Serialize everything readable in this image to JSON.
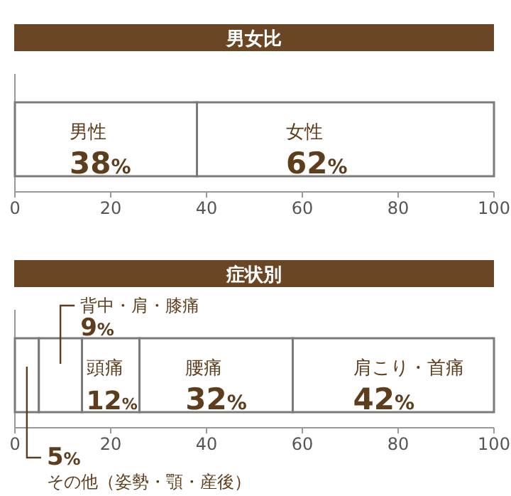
{
  "chart_data": [
    {
      "type": "bar",
      "orientation": "horizontal",
      "stacked": true,
      "title": "男女比",
      "categories": [
        null
      ],
      "series": [
        {
          "name": "男性",
          "color": "#ffffff",
          "values": [
            38
          ],
          "value_labels": [
            "38%"
          ]
        },
        {
          "name": "女性",
          "color": "#ffffff",
          "values": [
            62
          ],
          "value_labels": [
            "62%"
          ]
        }
      ],
      "xlim": [
        0,
        100
      ],
      "xticks": [
        0,
        20,
        40,
        60,
        80,
        100
      ]
    },
    {
      "type": "bar",
      "orientation": "horizontal",
      "stacked": true,
      "title": "症状別",
      "categories": [
        null
      ],
      "series": [
        {
          "name": "その他（姿勢・顎・産後）",
          "color": "#ffffff",
          "values": [
            5
          ],
          "value_labels": [
            "5%"
          ]
        },
        {
          "name": "背中・肩・膝痛",
          "color": "#ffffff",
          "values": [
            9
          ],
          "value_labels": [
            "9%"
          ]
        },
        {
          "name": "頭痛",
          "color": "#ffffff",
          "values": [
            12
          ],
          "value_labels": [
            "12%"
          ]
        },
        {
          "name": "腰痛",
          "color": "#ffffff",
          "values": [
            32
          ],
          "value_labels": [
            "32%"
          ]
        },
        {
          "name": "肩こり・首痛",
          "color": "#ffffff",
          "values": [
            42
          ],
          "value_labels": [
            "42%"
          ]
        }
      ],
      "xlim": [
        0,
        100
      ],
      "xticks": [
        0,
        20,
        40,
        60,
        80,
        100
      ]
    }
  ]
}
